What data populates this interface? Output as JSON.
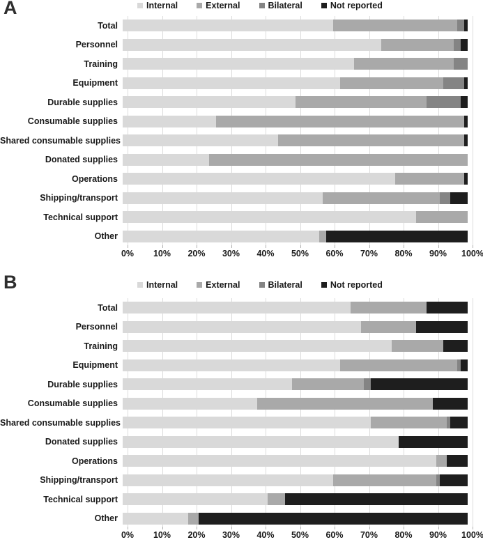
{
  "page": {
    "background": "#ffffff"
  },
  "legend": {
    "items": [
      {
        "label": "Internal",
        "color": "#d9d9d9"
      },
      {
        "label": "External",
        "color": "#a9a9a9"
      },
      {
        "label": "Bilateral",
        "color": "#848484"
      },
      {
        "label": "Not reported",
        "color": "#1e1e1e"
      }
    ]
  },
  "panels": [
    {
      "label": "A"
    },
    {
      "label": "B"
    }
  ],
  "chart_data": [
    {
      "type": "bar",
      "orientation": "horizontal",
      "stacked": true,
      "panel": "A",
      "title": "",
      "xlabel": "",
      "ylabel": "",
      "xlim": [
        0,
        100
      ],
      "grid": true,
      "legend_position": "top",
      "x_tick_labels": [
        "0%",
        "10%",
        "20%",
        "30%",
        "40%",
        "50%",
        "60%",
        "70%",
        "80%",
        "90%",
        "100%"
      ],
      "categories": [
        "Total",
        "Personnel",
        "Training",
        "Equipment",
        "Durable supplies",
        "Consumable supplies",
        "Shared consumable supplies",
        "Donated supplies",
        "Operations",
        "Shipping/transport",
        "Technical support",
        "Other"
      ],
      "series": [
        {
          "name": "Internal",
          "color": "#d9d9d9",
          "values": [
            61,
            75,
            67,
            63,
            50,
            27,
            45,
            25,
            79,
            58,
            85,
            57
          ]
        },
        {
          "name": "External",
          "color": "#a9a9a9",
          "values": [
            36,
            21,
            29,
            30,
            38,
            72,
            54,
            75,
            20,
            34,
            15,
            2
          ]
        },
        {
          "name": "Bilateral",
          "color": "#848484",
          "values": [
            2,
            2,
            4,
            6,
            10,
            0,
            0,
            0,
            0,
            3,
            0,
            0
          ]
        },
        {
          "name": "Not reported",
          "color": "#1e1e1e",
          "values": [
            1,
            2,
            0,
            1,
            2,
            1,
            1,
            0,
            1,
            5,
            0,
            41
          ]
        }
      ]
    },
    {
      "type": "bar",
      "orientation": "horizontal",
      "stacked": true,
      "panel": "B",
      "title": "",
      "xlabel": "",
      "ylabel": "",
      "xlim": [
        0,
        100
      ],
      "grid": true,
      "legend_position": "top",
      "x_tick_labels": [
        "0%",
        "10%",
        "20%",
        "30%",
        "40%",
        "50%",
        "60%",
        "70%",
        "80%",
        "90%",
        "100%"
      ],
      "categories": [
        "Total",
        "Personnel",
        "Training",
        "Equipment",
        "Durable supplies",
        "Consumable supplies",
        "Shared consumable supplies",
        "Donated supplies",
        "Operations",
        "Shipping/transport",
        "Technical support",
        "Other"
      ],
      "series": [
        {
          "name": "Internal",
          "color": "#d9d9d9",
          "values": [
            66,
            69,
            78,
            63,
            49,
            39,
            72,
            80,
            91,
            61,
            42,
            19
          ]
        },
        {
          "name": "External",
          "color": "#a9a9a9",
          "values": [
            22,
            16,
            15,
            34,
            21,
            51,
            22,
            0,
            3,
            30,
            5,
            3
          ]
        },
        {
          "name": "Bilateral",
          "color": "#848484",
          "values": [
            0,
            0,
            0,
            1,
            2,
            0,
            1,
            0,
            0,
            1,
            0,
            0
          ]
        },
        {
          "name": "Not reported",
          "color": "#1e1e1e",
          "values": [
            12,
            15,
            7,
            2,
            28,
            10,
            5,
            20,
            6,
            8,
            53,
            78
          ]
        }
      ]
    }
  ]
}
